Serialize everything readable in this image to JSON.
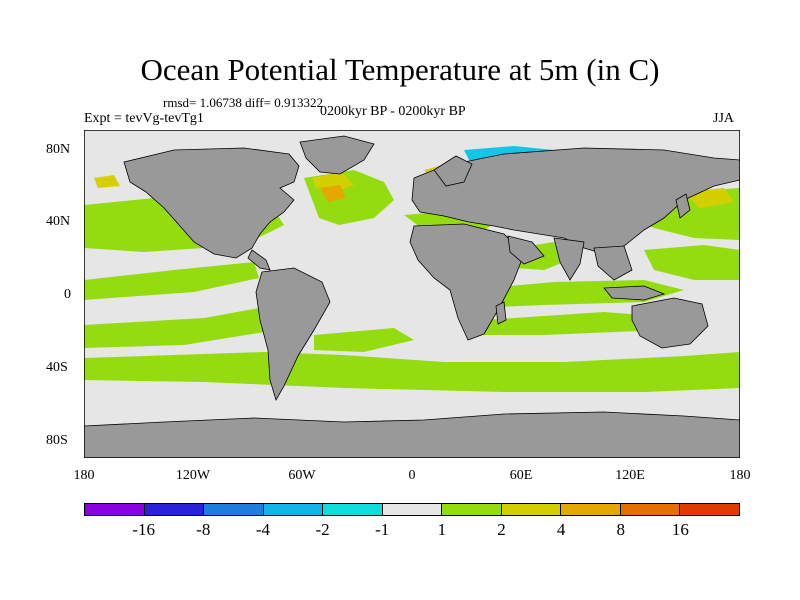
{
  "title": "Ocean Potential Temperature at 5m (in C)",
  "stats": "rmsd= 1.06738  diff= 0.913322",
  "experiment": "Expt = tevVg-tevTg1",
  "period": "0200kyr BP - 0200kyr BP",
  "season": "JJA",
  "lat_labels": [
    "80N",
    "40N",
    "0",
    "40S",
    "80S"
  ],
  "lon_labels": [
    "180",
    "120W",
    "60W",
    "0",
    "60E",
    "120E",
    "180"
  ],
  "colorbar": {
    "colors": [
      "#8a00e0",
      "#2a22d8",
      "#1e7ee0",
      "#12b4e8",
      "#10dcdc",
      "#e6e6e6",
      "#94dc10",
      "#d4d000",
      "#e6a800",
      "#e47000",
      "#e03c00"
    ],
    "labels": [
      "-16",
      "-8",
      "-4",
      "-2",
      "-1",
      "1",
      "2",
      "4",
      "8",
      "16"
    ]
  },
  "colors": {
    "land": "#999999",
    "ocean_neutral": "#e6e6e6",
    "warm_1_2": "#94dc10",
    "warm_2_4": "#d4d000",
    "warm_4_8": "#e6a800",
    "cool": "#12c6e8"
  }
}
